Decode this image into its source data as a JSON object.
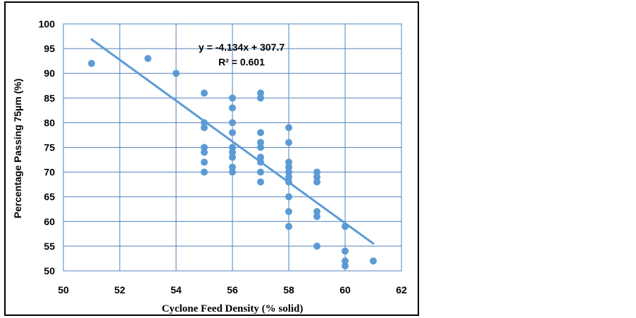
{
  "chart_data": {
    "type": "scatter",
    "title": "",
    "xlabel": "Cyclone Feed Density (% solid)",
    "ylabel": "Percentage Passing 75µm (%)",
    "xlim": [
      50,
      62
    ],
    "ylim": [
      50,
      100
    ],
    "x_ticks": [
      "50",
      "52",
      "54",
      "56",
      "58",
      "60",
      "62"
    ],
    "y_ticks": [
      "50",
      "55",
      "60",
      "65",
      "70",
      "75",
      "80",
      "85",
      "90",
      "95",
      "100"
    ],
    "grid": true,
    "legend": "none",
    "colors": {
      "points": "#5b9bd5",
      "trendline": "#5b9bd5",
      "grid": "#4f81bd"
    },
    "points": [
      {
        "x": 51,
        "y": 92
      },
      {
        "x": 53,
        "y": 93
      },
      {
        "x": 54,
        "y": 90
      },
      {
        "x": 55,
        "y": 86
      },
      {
        "x": 55,
        "y": 80
      },
      {
        "x": 55,
        "y": 79
      },
      {
        "x": 55,
        "y": 75
      },
      {
        "x": 55,
        "y": 74
      },
      {
        "x": 55,
        "y": 72
      },
      {
        "x": 55,
        "y": 70
      },
      {
        "x": 56,
        "y": 85
      },
      {
        "x": 56,
        "y": 83
      },
      {
        "x": 56,
        "y": 80
      },
      {
        "x": 56,
        "y": 78
      },
      {
        "x": 56,
        "y": 75
      },
      {
        "x": 56,
        "y": 74
      },
      {
        "x": 56,
        "y": 73
      },
      {
        "x": 56,
        "y": 71
      },
      {
        "x": 56,
        "y": 70
      },
      {
        "x": 57,
        "y": 86
      },
      {
        "x": 57,
        "y": 85
      },
      {
        "x": 57,
        "y": 78
      },
      {
        "x": 57,
        "y": 76
      },
      {
        "x": 57,
        "y": 75
      },
      {
        "x": 57,
        "y": 73
      },
      {
        "x": 57,
        "y": 72
      },
      {
        "x": 57,
        "y": 70
      },
      {
        "x": 57,
        "y": 68
      },
      {
        "x": 58,
        "y": 79
      },
      {
        "x": 58,
        "y": 76
      },
      {
        "x": 58,
        "y": 72
      },
      {
        "x": 58,
        "y": 71
      },
      {
        "x": 58,
        "y": 70
      },
      {
        "x": 58,
        "y": 69
      },
      {
        "x": 58,
        "y": 68
      },
      {
        "x": 58,
        "y": 65
      },
      {
        "x": 58,
        "y": 62
      },
      {
        "x": 58,
        "y": 59
      },
      {
        "x": 59,
        "y": 70
      },
      {
        "x": 59,
        "y": 69
      },
      {
        "x": 59,
        "y": 68
      },
      {
        "x": 59,
        "y": 62
      },
      {
        "x": 59,
        "y": 61
      },
      {
        "x": 59,
        "y": 55
      },
      {
        "x": 60,
        "y": 59
      },
      {
        "x": 60,
        "y": 54
      },
      {
        "x": 60,
        "y": 52
      },
      {
        "x": 60,
        "y": 51
      },
      {
        "x": 61,
        "y": 52
      }
    ],
    "trendline": {
      "slope": -4.134,
      "intercept": 307.7,
      "x_range": [
        51,
        61
      ]
    },
    "annotations": {
      "equation": "y = -4.134x + 307.7",
      "r_squared": "R² = 0.601"
    }
  }
}
